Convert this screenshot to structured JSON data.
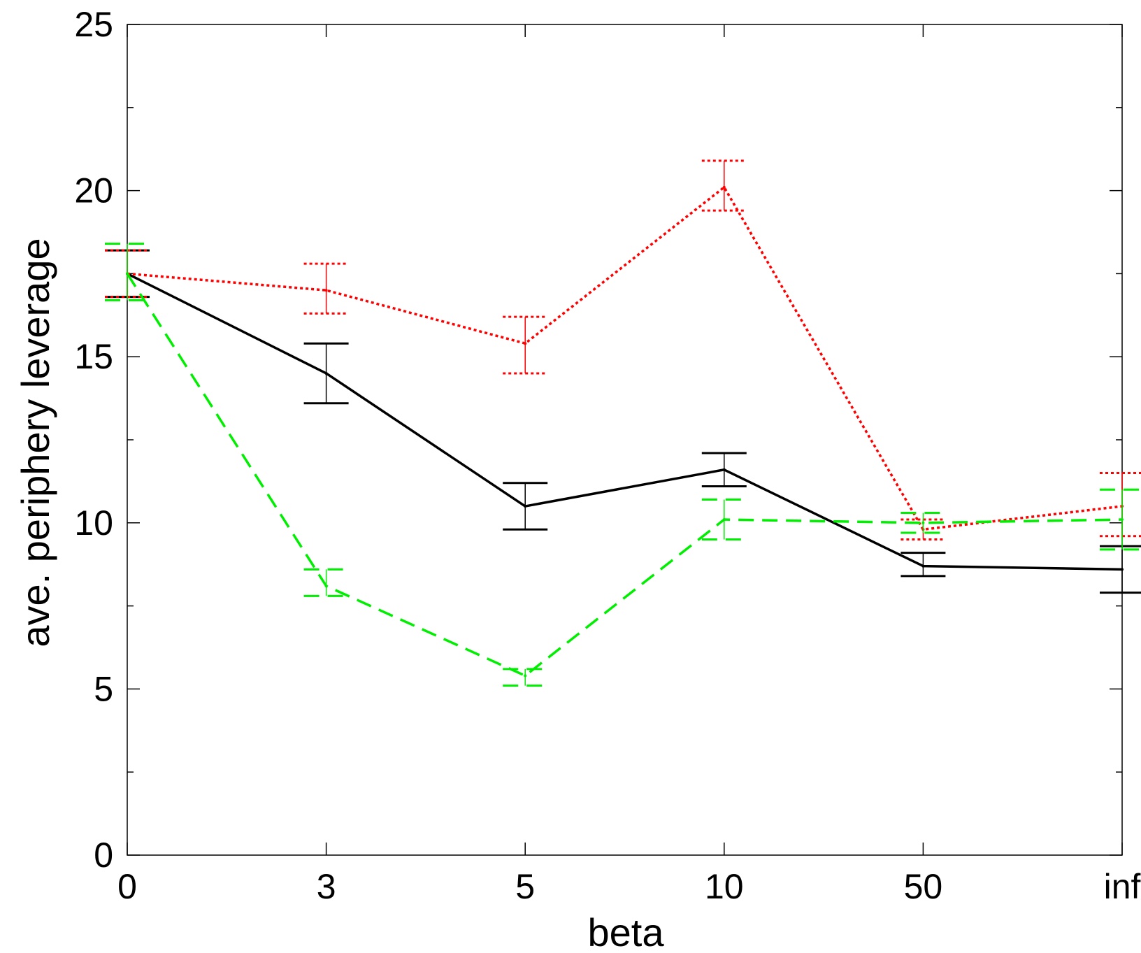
{
  "chart_data": {
    "type": "line",
    "xlabel": "beta",
    "ylabel": "ave. periphery leverage",
    "categories": [
      "0",
      "3",
      "5",
      "10",
      "50",
      "inf"
    ],
    "ylim": [
      0,
      25
    ],
    "yticks": [
      0,
      5,
      10,
      15,
      20,
      25
    ],
    "grid": false,
    "legend": "none",
    "series": [
      {
        "color": "#000000",
        "style": "solid",
        "values": [
          17.5,
          14.5,
          10.5,
          11.6,
          8.7,
          8.6
        ],
        "err_low": [
          16.8,
          13.6,
          9.8,
          11.1,
          8.4,
          7.9
        ],
        "err_high": [
          18.2,
          15.4,
          11.2,
          12.1,
          9.1,
          9.3
        ]
      },
      {
        "color": "#ff0000",
        "style": "dotted",
        "values": [
          17.5,
          17.0,
          15.4,
          20.1,
          9.8,
          10.5
        ],
        "err_low": [
          16.8,
          16.3,
          14.5,
          19.4,
          9.5,
          9.6
        ],
        "err_high": [
          18.2,
          17.8,
          16.2,
          20.9,
          10.1,
          11.5
        ]
      },
      {
        "color": "#00ee00",
        "style": "dashed",
        "values": [
          17.5,
          8.1,
          5.4,
          10.1,
          10.0,
          10.1
        ],
        "err_low": [
          16.7,
          7.8,
          5.1,
          9.5,
          9.7,
          9.2
        ],
        "err_high": [
          18.4,
          8.6,
          5.6,
          10.7,
          10.3,
          11.0
        ]
      }
    ]
  }
}
